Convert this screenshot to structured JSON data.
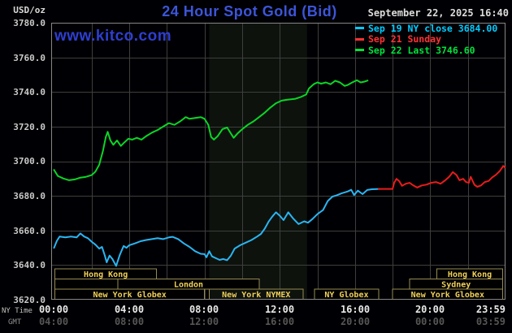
{
  "header": {
    "units": "USD/oz",
    "title": "24 Hour Spot Gold (Bid)",
    "datetime": "September 22, 2025 16:40"
  },
  "watermark": "www.kitco.com",
  "legend": [
    {
      "label": "Sep 19 NY close 3684.00",
      "color": "#00ccff"
    },
    {
      "label": "Sep 21 Sunday",
      "color": "#ff3232"
    },
    {
      "label": "Sep 22 Last 3746.60",
      "color": "#00e23c"
    }
  ],
  "axes": {
    "y_ticks": [
      "3780.0",
      "3760.0",
      "3740.0",
      "3720.0",
      "3700.0",
      "3680.0",
      "3660.0",
      "3640.0",
      "3620.0"
    ],
    "x_ny_label": "NY Time",
    "x_gmt_label": "GMT",
    "x_ny_ticks": [
      "00:00",
      "04:00",
      "08:00",
      "12:00",
      "16:00",
      "20:00",
      "23:59"
    ],
    "x_gmt_ticks": [
      "04:00",
      "08:00",
      "12:00",
      "16:00",
      "20:00",
      "00:00",
      "03:59"
    ]
  },
  "sessions": [
    {
      "label": "Hong Kong",
      "row": 0,
      "start_h": 0.05,
      "end_h": 5.45
    },
    {
      "label": "",
      "row": 1,
      "start_h": 0.05,
      "end_h": 3.4
    },
    {
      "label": "London",
      "row": 1,
      "start_h": 3.4,
      "end_h": 10.9
    },
    {
      "label": "New York Globex",
      "row": 2,
      "start_h": 0.05,
      "end_h": 8.0
    },
    {
      "label": "New York NYMEX",
      "row": 2,
      "start_h": 8.25,
      "end_h": 13.25
    },
    {
      "label": "NY Globex",
      "row": 2,
      "start_h": 13.85,
      "end_h": 17.25
    },
    {
      "label": "New York Globex",
      "row": 2,
      "start_h": 18.0,
      "end_h": 23.85
    },
    {
      "label": "Sydney",
      "row": 1,
      "start_h": 18.9,
      "end_h": 23.85
    },
    {
      "label": "Hong Kong",
      "row": 0,
      "start_h": 20.35,
      "end_h": 23.85
    }
  ],
  "nymex_band": {
    "start_h": 8.25,
    "end_h": 13.45
  },
  "colors": {
    "background": "#000004",
    "title_blue": "#3c55d9",
    "watermark_blue": "#2e3ed0",
    "grid": "#3e3e3e",
    "border": "#868686",
    "band": "#0d120d",
    "session_border": "#968b52",
    "session_text": "#f0d05a",
    "axis_text": "#c9c9c9",
    "axis_text_bright": "#e8e8e8",
    "gmt_text": "#565656",
    "date_text": "#dcdcdc"
  },
  "chart_data": {
    "type": "line",
    "title": "24 Hour Spot Gold (Bid)",
    "xlabel": "NY Time (hours 00:00-23:59)",
    "ylabel": "USD/oz",
    "ylim": [
      3620,
      3780
    ],
    "xlim_hours": [
      0,
      24
    ],
    "grid": true,
    "legend_position": "top-right",
    "series": [
      {
        "name": "Sep 19 NY close",
        "color": "#2ab5f2",
        "close": 3684.0,
        "points": [
          [
            0,
            3650
          ],
          [
            0.15,
            3654
          ],
          [
            0.3,
            3656.5
          ],
          [
            0.6,
            3656
          ],
          [
            0.9,
            3656.5
          ],
          [
            1.2,
            3656
          ],
          [
            1.4,
            3658.3
          ],
          [
            1.6,
            3656.5
          ],
          [
            1.8,
            3655.5
          ],
          [
            2.0,
            3653.5
          ],
          [
            2.2,
            3651.8
          ],
          [
            2.4,
            3649.5
          ],
          [
            2.55,
            3650.5
          ],
          [
            2.7,
            3645.5
          ],
          [
            2.8,
            3641.6
          ],
          [
            2.95,
            3645.5
          ],
          [
            3.1,
            3643.5
          ],
          [
            3.3,
            3639.5
          ],
          [
            3.5,
            3646
          ],
          [
            3.7,
            3651
          ],
          [
            3.85,
            3650
          ],
          [
            4.0,
            3651.5
          ],
          [
            4.3,
            3652.5
          ],
          [
            4.6,
            3653.8
          ],
          [
            4.9,
            3654.5
          ],
          [
            5.2,
            3655
          ],
          [
            5.5,
            3655.5
          ],
          [
            5.8,
            3655
          ],
          [
            6.1,
            3656
          ],
          [
            6.3,
            3656.3
          ],
          [
            6.6,
            3655
          ],
          [
            6.9,
            3652.5
          ],
          [
            7.2,
            3650.5
          ],
          [
            7.5,
            3648
          ],
          [
            7.8,
            3646.5
          ],
          [
            8.0,
            3646.3
          ],
          [
            8.1,
            3644.5
          ],
          [
            8.25,
            3648
          ],
          [
            8.4,
            3645
          ],
          [
            8.6,
            3644
          ],
          [
            8.8,
            3643
          ],
          [
            9.0,
            3643.5
          ],
          [
            9.2,
            3642.8
          ],
          [
            9.4,
            3645.5
          ],
          [
            9.6,
            3649.5
          ],
          [
            9.9,
            3651.5
          ],
          [
            10.2,
            3653
          ],
          [
            10.5,
            3654.5
          ],
          [
            10.8,
            3656.5
          ],
          [
            11.0,
            3658
          ],
          [
            11.2,
            3661
          ],
          [
            11.4,
            3665
          ],
          [
            11.6,
            3668
          ],
          [
            11.8,
            3670.5
          ],
          [
            12.0,
            3668.5
          ],
          [
            12.2,
            3666
          ],
          [
            12.45,
            3670.5
          ],
          [
            12.7,
            3667
          ],
          [
            13.0,
            3663.7
          ],
          [
            13.3,
            3665.3
          ],
          [
            13.5,
            3664.5
          ],
          [
            13.75,
            3666.8
          ],
          [
            14.0,
            3669.4
          ],
          [
            14.3,
            3671.8
          ],
          [
            14.55,
            3677
          ],
          [
            14.8,
            3679.6
          ],
          [
            15.0,
            3680.2
          ],
          [
            15.3,
            3681.5
          ],
          [
            15.6,
            3682.5
          ],
          [
            15.8,
            3683.5
          ],
          [
            15.95,
            3680.5
          ],
          [
            16.15,
            3683
          ],
          [
            16.4,
            3681
          ],
          [
            16.65,
            3683.4
          ],
          [
            16.9,
            3683.8
          ],
          [
            17.3,
            3684
          ]
        ]
      },
      {
        "name": "Sep 21 Sunday",
        "color": "#e81c1c",
        "points": [
          [
            17.25,
            3684
          ],
          [
            17.6,
            3684
          ],
          [
            18.0,
            3684
          ],
          [
            18.08,
            3687.5
          ],
          [
            18.2,
            3689.8
          ],
          [
            18.35,
            3688.5
          ],
          [
            18.5,
            3685.8
          ],
          [
            18.7,
            3687
          ],
          [
            18.9,
            3687.5
          ],
          [
            19.1,
            3686
          ],
          [
            19.3,
            3684.8
          ],
          [
            19.55,
            3686
          ],
          [
            19.8,
            3686.5
          ],
          [
            20.05,
            3687.5
          ],
          [
            20.3,
            3688
          ],
          [
            20.55,
            3687
          ],
          [
            20.8,
            3689
          ],
          [
            21.0,
            3691
          ],
          [
            21.2,
            3693.7
          ],
          [
            21.4,
            3692
          ],
          [
            21.55,
            3689
          ],
          [
            21.75,
            3689.8
          ],
          [
            21.9,
            3688
          ],
          [
            22.05,
            3687.5
          ],
          [
            22.15,
            3691
          ],
          [
            22.35,
            3686.4
          ],
          [
            22.5,
            3685.2
          ],
          [
            22.7,
            3686
          ],
          [
            22.9,
            3688
          ],
          [
            23.1,
            3688.6
          ],
          [
            23.3,
            3690.7
          ],
          [
            23.5,
            3692.2
          ],
          [
            23.7,
            3694.4
          ],
          [
            23.88,
            3697.3
          ],
          [
            23.97,
            3696.4
          ]
        ]
      },
      {
        "name": "Sep 22",
        "color": "#0bd626",
        "last": 3746.6,
        "points": [
          [
            0,
            3695
          ],
          [
            0.2,
            3691.5
          ],
          [
            0.5,
            3690
          ],
          [
            0.8,
            3689
          ],
          [
            1.1,
            3689.5
          ],
          [
            1.4,
            3690.5
          ],
          [
            1.7,
            3691
          ],
          [
            2.0,
            3692
          ],
          [
            2.2,
            3694
          ],
          [
            2.4,
            3698
          ],
          [
            2.6,
            3706
          ],
          [
            2.75,
            3714
          ],
          [
            2.85,
            3717
          ],
          [
            3.0,
            3712
          ],
          [
            3.15,
            3709.5
          ],
          [
            3.35,
            3712
          ],
          [
            3.55,
            3708.8
          ],
          [
            3.75,
            3711
          ],
          [
            3.95,
            3713
          ],
          [
            4.15,
            3712.5
          ],
          [
            4.4,
            3713.5
          ],
          [
            4.65,
            3712.5
          ],
          [
            4.9,
            3714.5
          ],
          [
            5.2,
            3716.5
          ],
          [
            5.5,
            3718
          ],
          [
            5.8,
            3720
          ],
          [
            6.1,
            3722
          ],
          [
            6.4,
            3721
          ],
          [
            6.7,
            3723
          ],
          [
            7.0,
            3725.5
          ],
          [
            7.2,
            3724.5
          ],
          [
            7.5,
            3725
          ],
          [
            7.8,
            3725.5
          ],
          [
            8.0,
            3724.5
          ],
          [
            8.2,
            3721
          ],
          [
            8.35,
            3714
          ],
          [
            8.5,
            3712.5
          ],
          [
            8.7,
            3714.5
          ],
          [
            8.95,
            3718.5
          ],
          [
            9.2,
            3719.5
          ],
          [
            9.4,
            3716
          ],
          [
            9.55,
            3713.5
          ],
          [
            9.75,
            3716
          ],
          [
            10.0,
            3718.5
          ],
          [
            10.3,
            3721
          ],
          [
            10.6,
            3723
          ],
          [
            10.9,
            3725.5
          ],
          [
            11.2,
            3728
          ],
          [
            11.5,
            3731
          ],
          [
            11.8,
            3733.5
          ],
          [
            12.1,
            3735
          ],
          [
            12.4,
            3735.5
          ],
          [
            12.8,
            3736
          ],
          [
            13.1,
            3737
          ],
          [
            13.4,
            3738.5
          ],
          [
            13.55,
            3742
          ],
          [
            13.8,
            3744.5
          ],
          [
            14.0,
            3745.5
          ],
          [
            14.2,
            3744.8
          ],
          [
            14.45,
            3745.5
          ],
          [
            14.7,
            3744.5
          ],
          [
            14.95,
            3746.5
          ],
          [
            15.2,
            3745.5
          ],
          [
            15.45,
            3743.5
          ],
          [
            15.6,
            3744
          ],
          [
            15.85,
            3745.5
          ],
          [
            16.1,
            3746.8
          ],
          [
            16.3,
            3745.5
          ],
          [
            16.5,
            3746
          ],
          [
            16.67,
            3746.6
          ]
        ]
      }
    ]
  }
}
